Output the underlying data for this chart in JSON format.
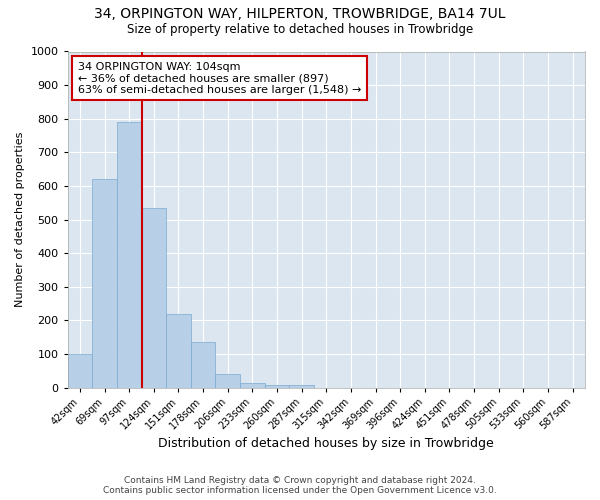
{
  "title_line1": "34, ORPINGTON WAY, HILPERTON, TROWBRIDGE, BA14 7UL",
  "title_line2": "Size of property relative to detached houses in Trowbridge",
  "xlabel": "Distribution of detached houses by size in Trowbridge",
  "ylabel": "Number of detached properties",
  "bar_color": "#b8cfe8",
  "bar_edge_color": "#7aaad0",
  "background_color": "#dce6f0",
  "grid_color": "#ffffff",
  "annotation_box_color": "#cc0000",
  "vline_color": "#cc0000",
  "annotation_line1": "34 ORPINGTON WAY: 104sqm",
  "annotation_line2": "← 36% of detached houses are smaller (897)",
  "annotation_line3": "63% of semi-detached houses are larger (1,548) →",
  "footer_line1": "Contains HM Land Registry data © Crown copyright and database right 2024.",
  "footer_line2": "Contains public sector information licensed under the Open Government Licence v3.0.",
  "categories": [
    "42sqm",
    "69sqm",
    "97sqm",
    "124sqm",
    "151sqm",
    "178sqm",
    "206sqm",
    "233sqm",
    "260sqm",
    "287sqm",
    "315sqm",
    "342sqm",
    "369sqm",
    "396sqm",
    "424sqm",
    "451sqm",
    "478sqm",
    "505sqm",
    "533sqm",
    "560sqm",
    "587sqm"
  ],
  "values": [
    100,
    620,
    790,
    535,
    220,
    135,
    40,
    12,
    8,
    8,
    0,
    0,
    0,
    0,
    0,
    0,
    0,
    0,
    0,
    0,
    0
  ],
  "ylim": [
    0,
    1000
  ],
  "yticks": [
    0,
    100,
    200,
    300,
    400,
    500,
    600,
    700,
    800,
    900,
    1000
  ],
  "vline_x": 2.5
}
